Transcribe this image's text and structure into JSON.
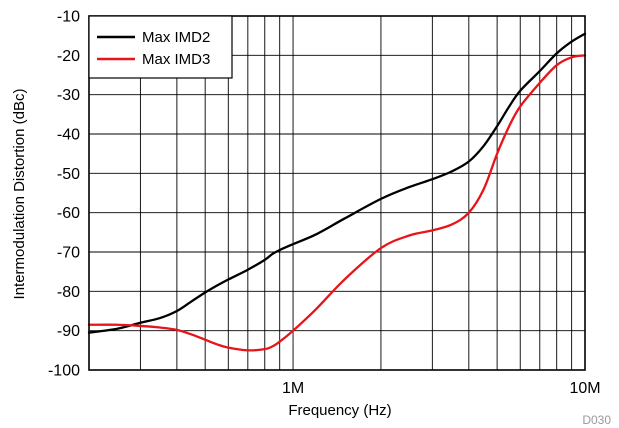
{
  "chart_data": {
    "type": "line",
    "xlabel": "Frequency (Hz)",
    "ylabel": "Intermodulation Distortion (dBc)",
    "x_scale": "log",
    "xlim": [
      200000,
      10000000
    ],
    "ylim": [
      -100,
      -10
    ],
    "x_ticks": [
      {
        "value": 1000000,
        "label": "1M"
      },
      {
        "value": 10000000,
        "label": "10M"
      }
    ],
    "y_ticks": [
      {
        "value": -10,
        "label": "-10"
      },
      {
        "value": -20,
        "label": "-20"
      },
      {
        "value": -30,
        "label": "-30"
      },
      {
        "value": -40,
        "label": "-40"
      },
      {
        "value": -50,
        "label": "-50"
      },
      {
        "value": -60,
        "label": "-60"
      },
      {
        "value": -70,
        "label": "-70"
      },
      {
        "value": -80,
        "label": "-80"
      },
      {
        "value": -90,
        "label": "-90"
      },
      {
        "value": -100,
        "label": "-100"
      }
    ],
    "grid": true,
    "legend_position": "top-left",
    "figure_id": "D030",
    "series": [
      {
        "name": "Max IMD2",
        "color": "#000000",
        "points": [
          [
            200000,
            -90.5
          ],
          [
            250000,
            -89.5
          ],
          [
            300000,
            -88
          ],
          [
            350000,
            -86.8
          ],
          [
            400000,
            -85
          ],
          [
            450000,
            -82.5
          ],
          [
            500000,
            -80.3
          ],
          [
            550000,
            -78.5
          ],
          [
            600000,
            -77
          ],
          [
            700000,
            -74.5
          ],
          [
            800000,
            -72
          ],
          [
            850000,
            -70.5
          ],
          [
            900000,
            -69.5
          ],
          [
            1000000,
            -68
          ],
          [
            1200000,
            -65.5
          ],
          [
            1500000,
            -61.5
          ],
          [
            2000000,
            -56.5
          ],
          [
            2500000,
            -53.5
          ],
          [
            3000000,
            -51.5
          ],
          [
            3500000,
            -49.5
          ],
          [
            4000000,
            -47
          ],
          [
            4500000,
            -43
          ],
          [
            5000000,
            -38
          ],
          [
            5500000,
            -33
          ],
          [
            6000000,
            -29
          ],
          [
            7000000,
            -24
          ],
          [
            8000000,
            -19.5
          ],
          [
            9000000,
            -16.5
          ],
          [
            10000000,
            -14.5
          ]
        ]
      },
      {
        "name": "Max IMD3",
        "color": "#e8141a",
        "points": [
          [
            200000,
            -88.5
          ],
          [
            250000,
            -88.5
          ],
          [
            300000,
            -88.8
          ],
          [
            350000,
            -89.2
          ],
          [
            400000,
            -89.8
          ],
          [
            450000,
            -91
          ],
          [
            500000,
            -92.3
          ],
          [
            550000,
            -93.5
          ],
          [
            600000,
            -94.3
          ],
          [
            700000,
            -95
          ],
          [
            800000,
            -94.7
          ],
          [
            850000,
            -94
          ],
          [
            900000,
            -92.8
          ],
          [
            1000000,
            -90
          ],
          [
            1200000,
            -84.5
          ],
          [
            1500000,
            -77
          ],
          [
            2000000,
            -69
          ],
          [
            2500000,
            -65.8
          ],
          [
            3000000,
            -64.5
          ],
          [
            3500000,
            -63
          ],
          [
            4000000,
            -60
          ],
          [
            4500000,
            -54
          ],
          [
            5000000,
            -45
          ],
          [
            5500000,
            -38
          ],
          [
            6000000,
            -33
          ],
          [
            7000000,
            -27
          ],
          [
            8000000,
            -22.5
          ],
          [
            9000000,
            -20.5
          ],
          [
            10000000,
            -20
          ]
        ]
      }
    ]
  }
}
